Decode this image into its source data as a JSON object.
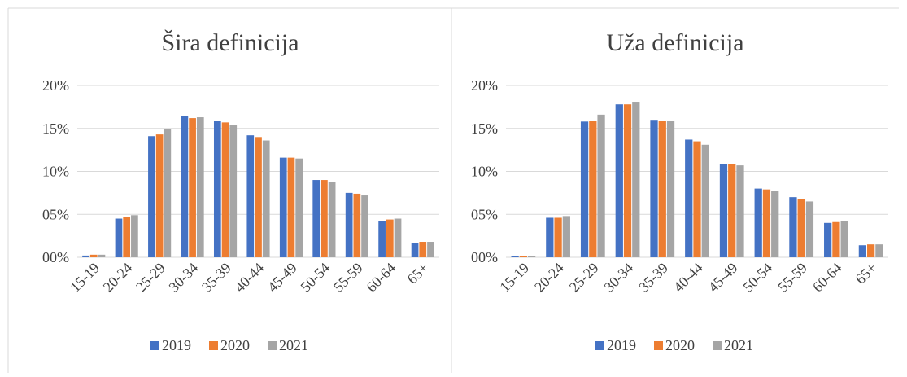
{
  "chart_data": [
    {
      "type": "bar",
      "title": "Šira definicija",
      "categories": [
        "15-19",
        "20-24",
        "25-29",
        "30-34",
        "35-39",
        "40-44",
        "45-49",
        "50-54",
        "55-59",
        "60-64",
        "65+"
      ],
      "series": [
        {
          "name": "2019",
          "color": "#4472c4",
          "values": [
            0.2,
            4.5,
            14.1,
            16.4,
            15.9,
            14.2,
            11.6,
            9.0,
            7.5,
            4.2,
            1.7
          ]
        },
        {
          "name": "2020",
          "color": "#ed7d31",
          "values": [
            0.3,
            4.7,
            14.3,
            16.2,
            15.7,
            14.0,
            11.6,
            9.0,
            7.4,
            4.4,
            1.8
          ]
        },
        {
          "name": "2021",
          "color": "#a5a5a5",
          "values": [
            0.3,
            4.9,
            14.9,
            16.3,
            15.4,
            13.6,
            11.5,
            8.8,
            7.2,
            4.5,
            1.8
          ]
        }
      ],
      "ylim": [
        0,
        20
      ],
      "yticks": [
        {
          "value": 0,
          "label": "00%"
        },
        {
          "value": 5,
          "label": "05%"
        },
        {
          "value": 10,
          "label": "10%"
        },
        {
          "value": 15,
          "label": "15%"
        },
        {
          "value": 20,
          "label": "20%"
        }
      ],
      "grid": true,
      "legend": "bottom"
    },
    {
      "type": "bar",
      "title": "Uža definicija",
      "categories": [
        "15-19",
        "20-24",
        "25-29",
        "30-34",
        "35-39",
        "40-44",
        "45-49",
        "50-54",
        "55-59",
        "60-64",
        "65+"
      ],
      "series": [
        {
          "name": "2019",
          "color": "#4472c4",
          "values": [
            0.1,
            4.6,
            15.8,
            17.8,
            16.0,
            13.7,
            10.9,
            8.0,
            7.0,
            4.0,
            1.4
          ]
        },
        {
          "name": "2020",
          "color": "#ed7d31",
          "values": [
            0.1,
            4.6,
            15.9,
            17.8,
            15.9,
            13.5,
            10.9,
            7.9,
            6.8,
            4.1,
            1.5
          ]
        },
        {
          "name": "2021",
          "color": "#a5a5a5",
          "values": [
            0.1,
            4.8,
            16.6,
            18.1,
            15.9,
            13.1,
            10.7,
            7.7,
            6.5,
            4.2,
            1.5
          ]
        }
      ],
      "ylim": [
        0,
        20
      ],
      "yticks": [
        {
          "value": 0,
          "label": "00%"
        },
        {
          "value": 5,
          "label": "05%"
        },
        {
          "value": 10,
          "label": "10%"
        },
        {
          "value": 15,
          "label": "15%"
        },
        {
          "value": 20,
          "label": "20%"
        }
      ],
      "grid": true,
      "legend": "bottom"
    }
  ]
}
